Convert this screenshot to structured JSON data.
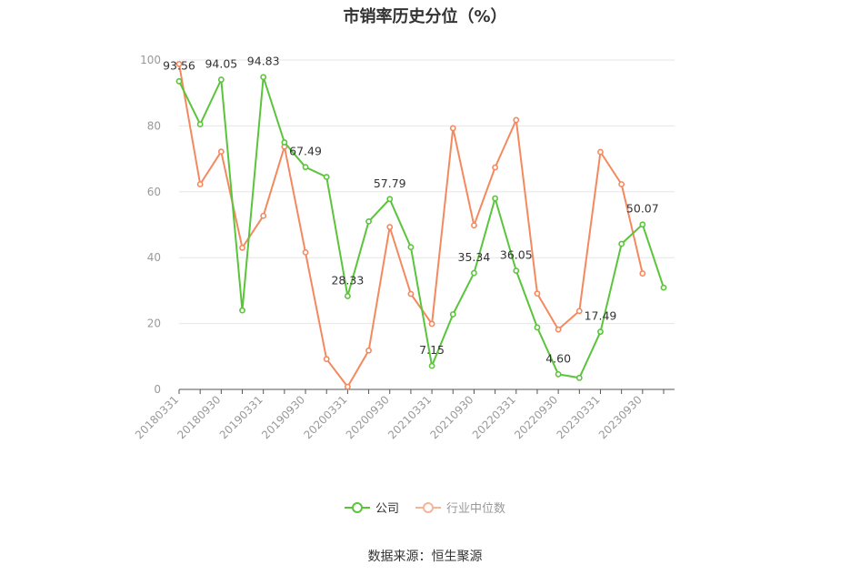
{
  "chart_data": {
    "type": "line",
    "title": "市销率历史分位（%）",
    "ylim": [
      0,
      100
    ],
    "yticks": [
      0,
      20,
      40,
      60,
      80,
      100
    ],
    "x_tick_labels": [
      "20180331",
      "20180930",
      "20190331",
      "20190930",
      "20200331",
      "20200930",
      "20210331",
      "20210930",
      "20220331",
      "20220930",
      "20230331",
      "20230930"
    ],
    "x": [
      "20180331",
      "20180630",
      "20180930",
      "20181231",
      "20190331",
      "20190630",
      "20190930",
      "20191231",
      "20200331",
      "20200630",
      "20200930",
      "20201231",
      "20210331",
      "20210630",
      "20210930",
      "20211231",
      "20220331",
      "20220630",
      "20220930",
      "20221231",
      "20230331",
      "20230630",
      "20230930",
      "20231231"
    ],
    "series": [
      {
        "name": "公司",
        "color": "#5ac43b",
        "values": [
          93.56,
          80.5,
          94.05,
          24.0,
          94.83,
          75.0,
          67.49,
          64.5,
          28.33,
          51.0,
          57.79,
          43.2,
          7.15,
          22.8,
          35.34,
          58.0,
          36.05,
          18.8,
          4.6,
          3.5,
          17.49,
          44.2,
          50.07,
          30.9
        ],
        "labels": {
          "0": "93.56",
          "2": "94.05",
          "4": "94.83",
          "6": "67.49",
          "8": "28.33",
          "10": "57.79",
          "12": "7.15",
          "14": "35.34",
          "16": "36.05",
          "18": "4.60",
          "20": "17.49",
          "22": "50.07"
        }
      },
      {
        "name": "行业中位数",
        "color": "#f4895f",
        "values": [
          98.8,
          62.3,
          72.2,
          43.0,
          52.7,
          73.7,
          41.6,
          9.2,
          0.8,
          11.8,
          49.3,
          29.0,
          19.9,
          79.3,
          49.8,
          67.4,
          81.8,
          29.1,
          18.2,
          23.8,
          72.1,
          62.3,
          35.2,
          null
        ]
      }
    ],
    "grid": true,
    "legend_position": "bottom-center"
  },
  "source": "数据来源：恒生聚源"
}
